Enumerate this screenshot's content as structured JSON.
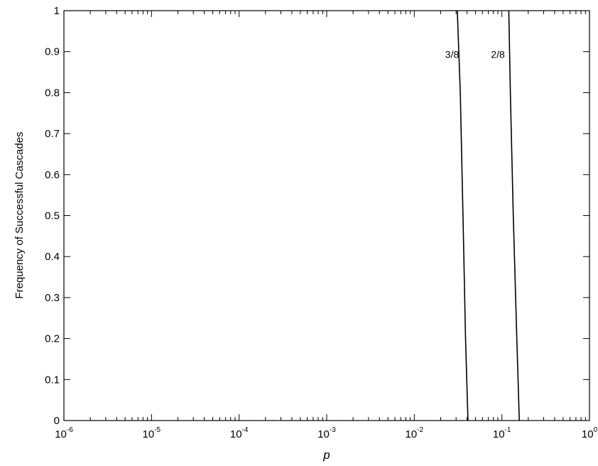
{
  "chart_data": {
    "type": "line",
    "xscale": "log",
    "xlim": [
      1e-06,
      1
    ],
    "ylim": [
      0,
      1
    ],
    "xlabel": "p",
    "ylabel": "Frequency of Successful Cascades",
    "x_ticks": [
      {
        "value": 1e-06,
        "base": "10",
        "exp": "-6"
      },
      {
        "value": 1e-05,
        "base": "10",
        "exp": "-5"
      },
      {
        "value": 0.0001,
        "base": "10",
        "exp": "-4"
      },
      {
        "value": 0.001,
        "base": "10",
        "exp": "-3"
      },
      {
        "value": 0.01,
        "base": "10",
        "exp": "-2"
      },
      {
        "value": 0.1,
        "base": "10",
        "exp": "-1"
      },
      {
        "value": 1,
        "base": "10",
        "exp": "0"
      }
    ],
    "y_ticks": [
      {
        "value": 0,
        "label": "0"
      },
      {
        "value": 0.1,
        "label": "0.1"
      },
      {
        "value": 0.2,
        "label": "0.2"
      },
      {
        "value": 0.3,
        "label": "0.3"
      },
      {
        "value": 0.4,
        "label": "0.4"
      },
      {
        "value": 0.5,
        "label": "0.5"
      },
      {
        "value": 0.6,
        "label": "0.6"
      },
      {
        "value": 0.7,
        "label": "0.7"
      },
      {
        "value": 0.8,
        "label": "0.8"
      },
      {
        "value": 0.9,
        "label": "0.9"
      },
      {
        "value": 1,
        "label": "1"
      }
    ],
    "grid": false,
    "series": [
      {
        "name": "3/8",
        "label_at": {
          "x": 0.027,
          "y": 0.885
        },
        "points": [
          {
            "x": 0.031,
            "y": 1
          },
          {
            "x": 0.0335,
            "y": 0.8
          },
          {
            "x": 0.036,
            "y": 0.5
          },
          {
            "x": 0.0385,
            "y": 0.2
          },
          {
            "x": 0.041,
            "y": 0
          }
        ]
      },
      {
        "name": "2/8",
        "label_at": {
          "x": 0.09,
          "y": 0.885
        },
        "points": [
          {
            "x": 0.12,
            "y": 1
          },
          {
            "x": 0.125,
            "y": 0.8
          },
          {
            "x": 0.135,
            "y": 0.5
          },
          {
            "x": 0.148,
            "y": 0.2
          },
          {
            "x": 0.158,
            "y": 0
          }
        ]
      }
    ]
  }
}
